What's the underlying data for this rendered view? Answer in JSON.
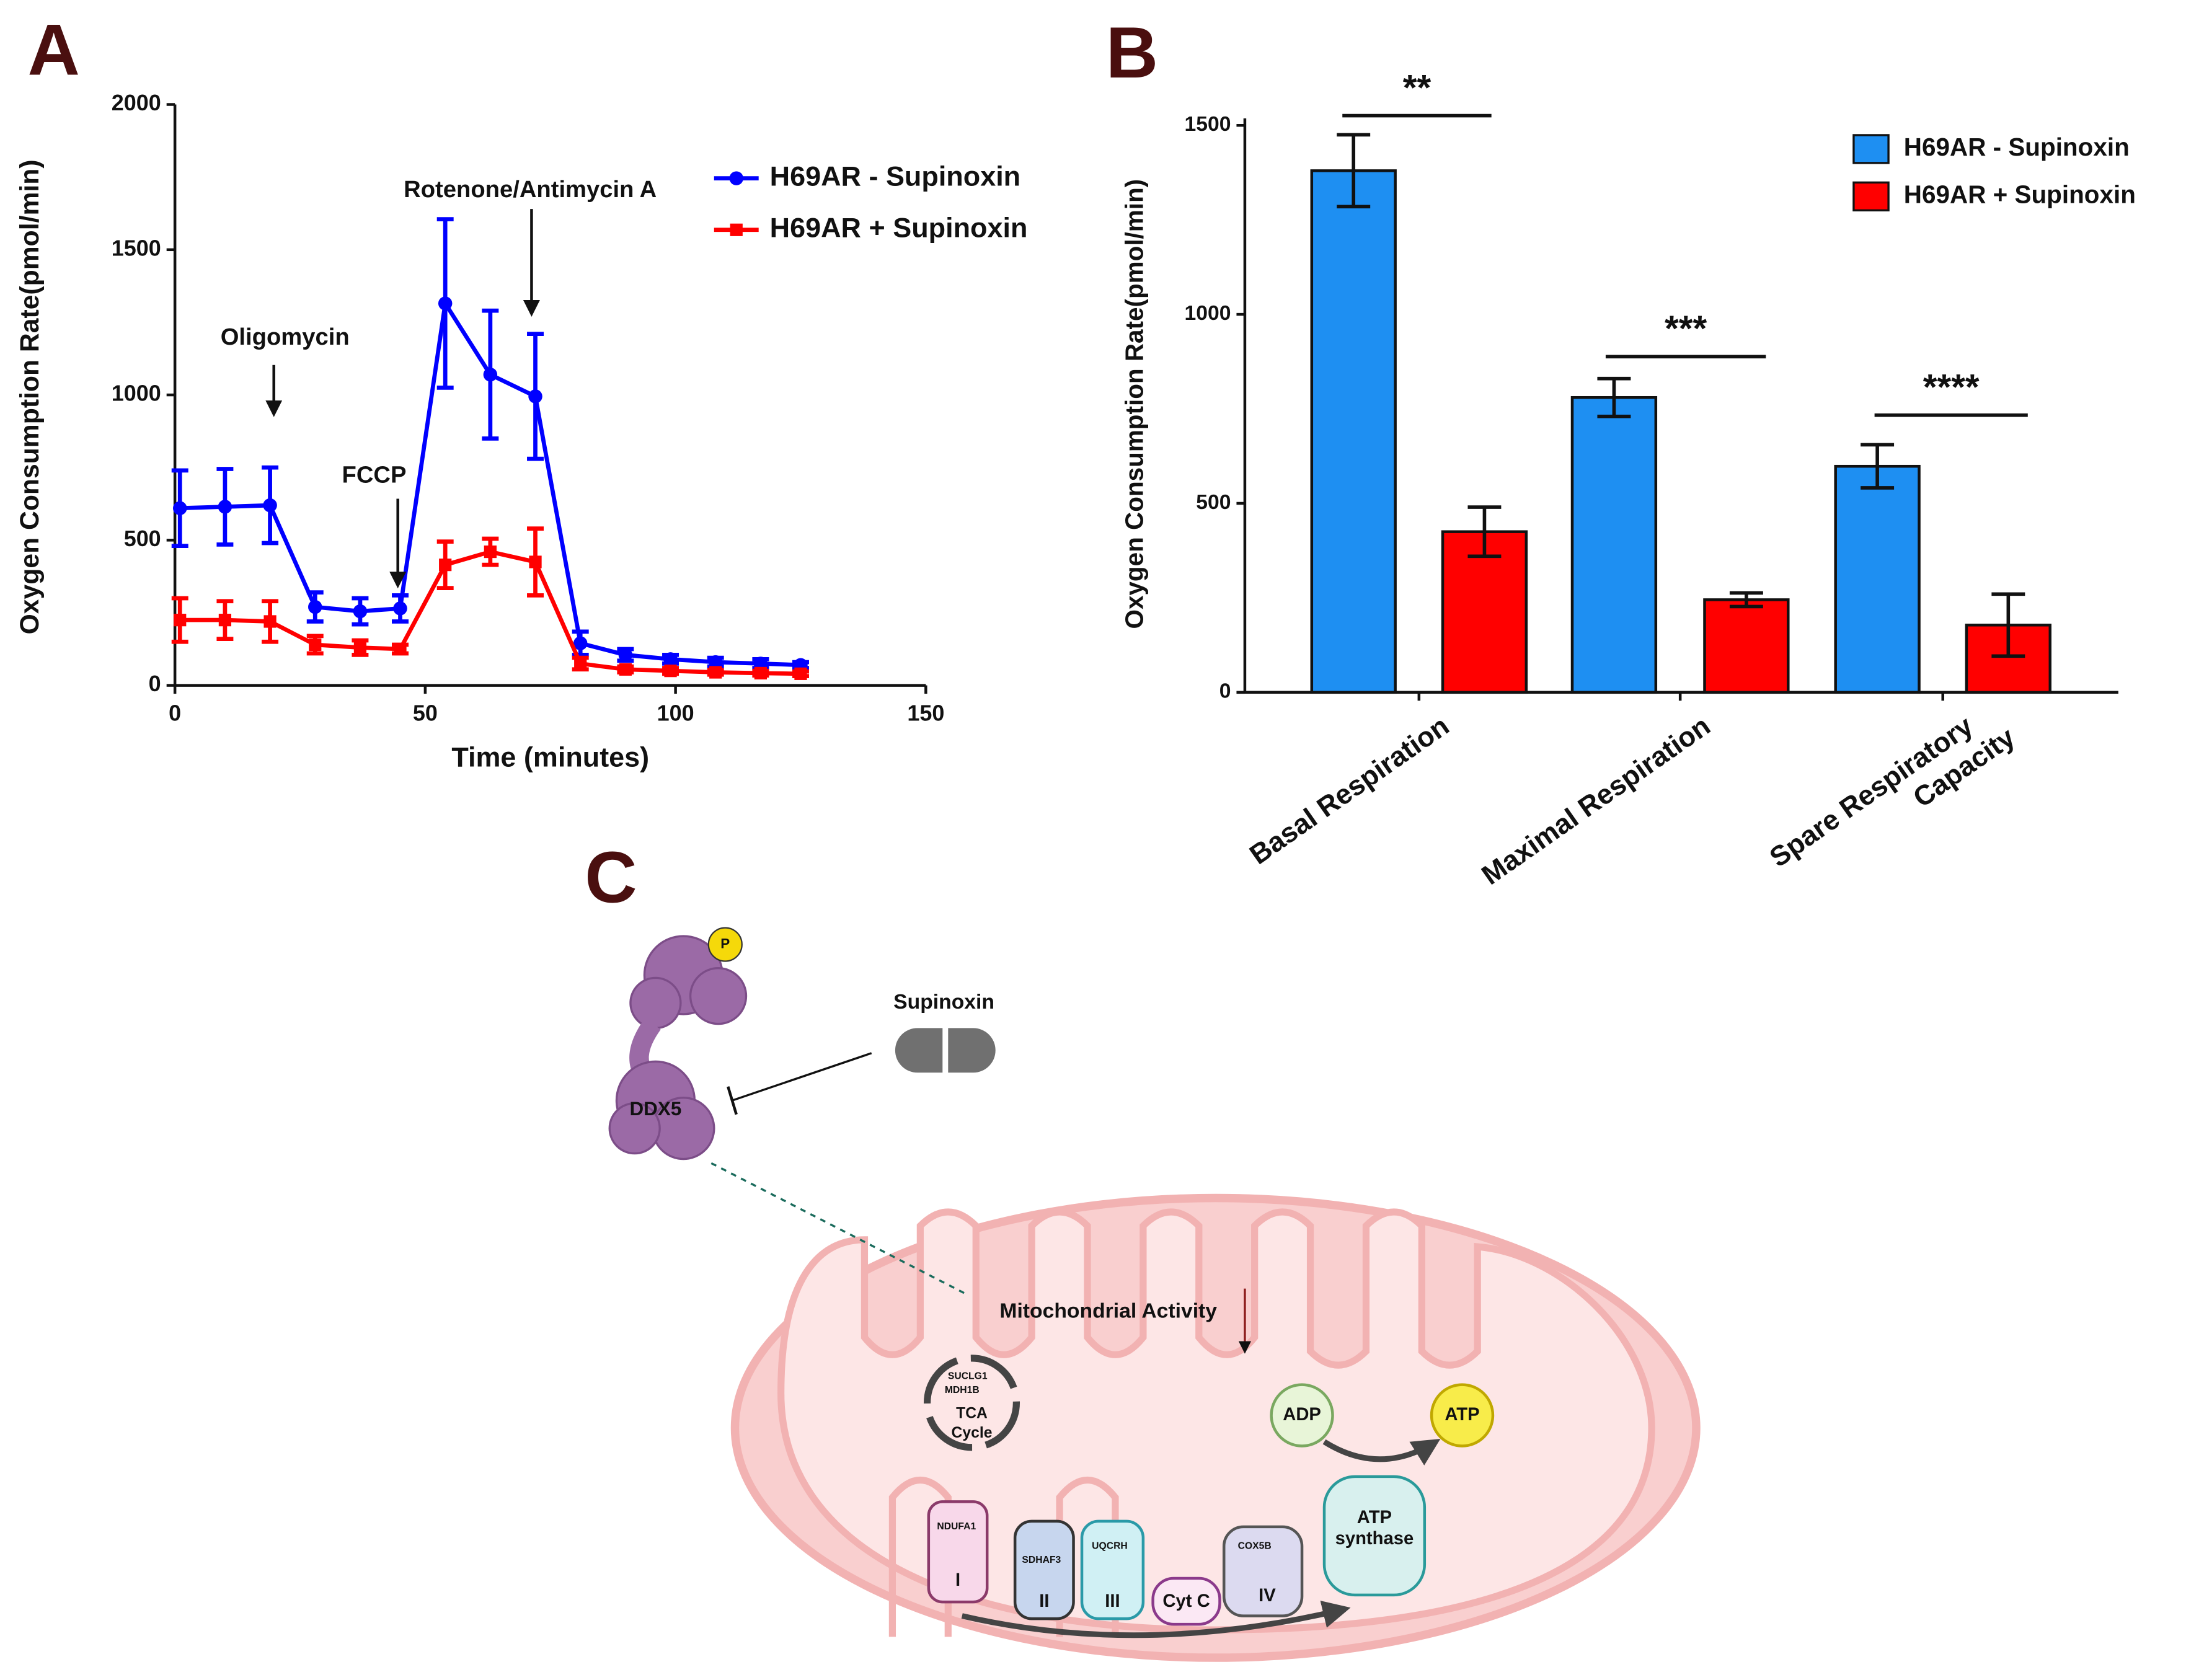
{
  "panels": [
    "A",
    "B",
    "C"
  ],
  "chart_data": [
    {
      "type": "line",
      "xlabel": "Time (minutes)",
      "ylabel": "Oxygen Consumption Rate(pmol/min)",
      "x": [
        1,
        10,
        19,
        28,
        37,
        45,
        54,
        63,
        72,
        81,
        90,
        99,
        108,
        117,
        125
      ],
      "xlim": [
        0,
        150
      ],
      "xticks": [
        0,
        50,
        100,
        150
      ],
      "ylim": [
        0,
        2000
      ],
      "yticks": [
        0,
        500,
        1000,
        1500,
        2000
      ],
      "annotations": [
        "Oligomycin",
        "FCCP",
        "Rotenone/Antimycin A"
      ],
      "legend": "upper right",
      "series": [
        {
          "name": "H69AR - Supinoxin",
          "color": "#0000ff",
          "marker": "circle",
          "values": [
            610,
            615,
            620,
            270,
            255,
            265,
            1315,
            1070,
            995,
            145,
            105,
            90,
            80,
            75,
            70
          ],
          "errors": [
            130,
            130,
            130,
            50,
            45,
            45,
            290,
            220,
            215,
            40,
            20,
            15,
            15,
            15,
            10
          ]
        },
        {
          "name": "H69AR + Supinoxin",
          "color": "#ff0000",
          "marker": "square",
          "values": [
            225,
            225,
            220,
            140,
            130,
            125,
            415,
            460,
            425,
            75,
            55,
            50,
            45,
            42,
            40
          ],
          "errors": [
            75,
            65,
            70,
            30,
            25,
            15,
            80,
            45,
            115,
            20,
            10,
            10,
            8,
            8,
            8
          ]
        }
      ]
    },
    {
      "type": "bar",
      "ylabel": "Oxygen Consumption Rate(pmol/min)",
      "categories": [
        "Basal Respiration",
        "Maximal Respiration",
        "Spare Respiratory Capacity"
      ],
      "ylim": [
        0,
        1500
      ],
      "yticks": [
        0,
        500,
        1000,
        1500
      ],
      "significance": [
        "**",
        "***",
        "****"
      ],
      "legend": "upper right",
      "series": [
        {
          "name": "H69AR - Supinoxin",
          "color": "#1e8ff2",
          "values": [
            1380,
            780,
            598
          ],
          "errors": [
            95,
            50,
            57
          ]
        },
        {
          "name": "H69AR + Supinoxin",
          "color": "#ff0000",
          "values": [
            425,
            245,
            178
          ],
          "errors": [
            65,
            18,
            82
          ]
        }
      ]
    }
  ],
  "diagram": {
    "drug": "Supinoxin",
    "protein": "DDX5",
    "phospho": "P",
    "activity": "Mitochondrial Activity",
    "tca": {
      "genes": [
        "SUCLG1",
        "MDH1B"
      ],
      "label": [
        "TCA",
        "Cycle"
      ]
    },
    "adp": "ADP",
    "atp": "ATP",
    "synthase": [
      "ATP",
      "synthase"
    ],
    "complexes": [
      {
        "gene": "NDUFA1",
        "label": "I"
      },
      {
        "gene": "SDHAF3",
        "label": "II"
      },
      {
        "gene": "UQCRH",
        "label": "III"
      },
      {
        "gene": "",
        "label": "Cyt C"
      },
      {
        "gene": "COX5B",
        "label": "IV"
      }
    ]
  }
}
